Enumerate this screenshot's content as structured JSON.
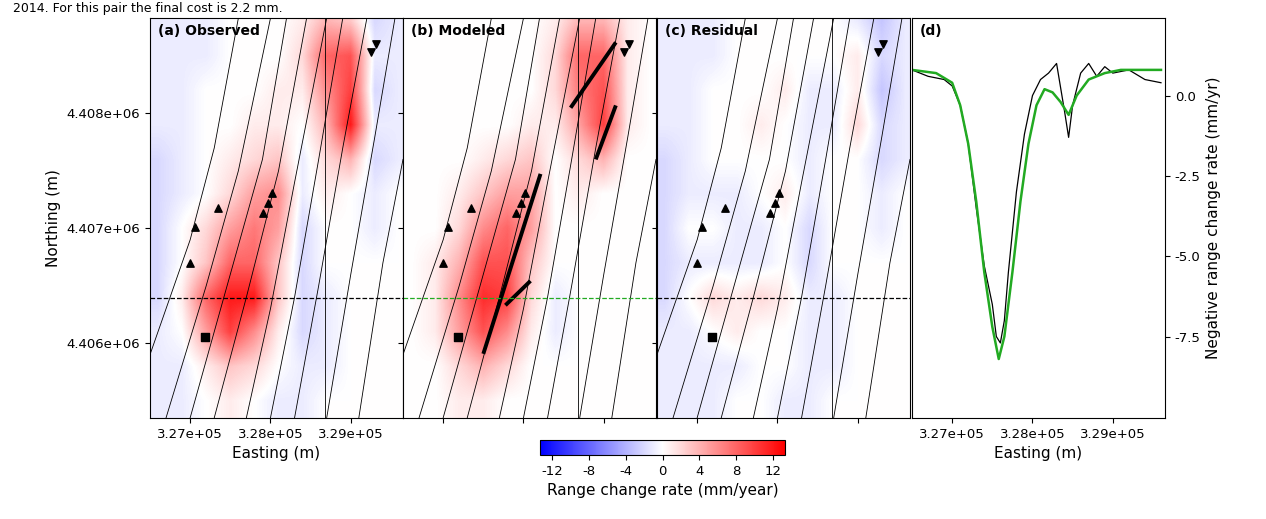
{
  "header_text": "2014. For this pair the final cost is 2.2 mm.",
  "colorbar": {
    "label": "Range change rate (mm/year)",
    "range": [
      -13.3,
      13.3
    ],
    "ticks": [
      -12,
      -8,
      -4,
      0,
      4,
      8,
      12
    ]
  },
  "faults": [
    [
      [
        326500,
        4405900
      ],
      [
        327000,
        4406900
      ],
      [
        327300,
        4407700
      ],
      [
        327600,
        4408830
      ]
    ],
    [
      [
        326700,
        4405350
      ],
      [
        327200,
        4406500
      ],
      [
        327600,
        4407500
      ],
      [
        328000,
        4408830
      ]
    ],
    [
      [
        327000,
        4405350
      ],
      [
        327500,
        4406600
      ],
      [
        327900,
        4407600
      ],
      [
        328200,
        4408830
      ]
    ],
    [
      [
        327300,
        4405350
      ],
      [
        327700,
        4406400
      ],
      [
        328100,
        4407500
      ],
      [
        328450,
        4408830
      ]
    ],
    [
      [
        327700,
        4405350
      ],
      [
        328000,
        4406300
      ],
      [
        328300,
        4407400
      ],
      [
        328700,
        4408830
      ]
    ],
    [
      [
        328000,
        4405350
      ],
      [
        328300,
        4406400
      ],
      [
        328600,
        4407600
      ],
      [
        328900,
        4408830
      ]
    ],
    [
      [
        328300,
        4405350
      ],
      [
        328600,
        4406500
      ],
      [
        328900,
        4407700
      ],
      [
        329200,
        4408830
      ]
    ],
    [
      [
        328700,
        4405350
      ],
      [
        329000,
        4406600
      ],
      [
        329300,
        4407800
      ],
      [
        329550,
        4408830
      ]
    ],
    [
      [
        329100,
        4405350
      ],
      [
        329400,
        4406700
      ],
      [
        329650,
        4407600
      ]
    ],
    [
      [
        328680,
        4405350
      ],
      [
        328680,
        4408830
      ]
    ]
  ],
  "markers": [
    {
      "marker": "triangle_up",
      "points": [
        [
          327062,
          4407008
        ],
        [
          327000,
          4406695
        ],
        [
          327350,
          4407178
        ],
        [
          328025,
          4407305
        ],
        [
          327975,
          4407220
        ],
        [
          327912,
          4407136
        ]
      ]
    },
    {
      "marker": "square",
      "points": [
        [
          327187,
          4406051
        ]
      ]
    },
    {
      "marker": "triangle_down",
      "points": [
        [
          329312,
          4408602
        ],
        [
          329250,
          4408534
        ]
      ]
    }
  ],
  "chart_data": [
    {
      "type": "heatmap",
      "title": "(a) Observed",
      "xlabel": "Easting (m)",
      "ylabel": "Northing (m)",
      "xlim": [
        326500,
        329650
      ],
      "ylim": [
        4405350,
        4408830
      ],
      "xticks": [
        {
          "value": 327000,
          "label": "3.27e+05"
        },
        {
          "value": 328000,
          "label": "3.28e+05"
        },
        {
          "value": 329000,
          "label": "3.29e+05"
        }
      ],
      "yticks": [
        {
          "value": 4406000,
          "label": "4.406e+06"
        },
        {
          "value": 4407000,
          "label": "4.407e+06"
        },
        {
          "value": 4408000,
          "label": "4.408e+06"
        }
      ],
      "profile": {
        "northing": 4406390,
        "color": "#000000",
        "line_style": "dashed"
      },
      "x_centers": [
        326600,
        326900,
        327200,
        327500,
        327800,
        328100,
        328400,
        328700,
        329000,
        329300,
        329600
      ],
      "y_centers": [
        4408800,
        4408500,
        4408200,
        4407900,
        4407600,
        4407300,
        4407000,
        4406700,
        4406400,
        4406100,
        4405800,
        4405500
      ],
      "cells": [
        [
          -1,
          -1,
          -1,
          0,
          0,
          0,
          1,
          4,
          3,
          -2,
          -1
        ],
        [
          -1,
          -1,
          -1,
          0,
          0,
          0,
          2,
          8,
          9,
          -1,
          -1
        ],
        [
          -1,
          -1,
          0,
          0,
          0,
          1,
          1,
          6,
          10,
          -2,
          -1
        ],
        [
          -1,
          -1,
          0,
          0,
          1,
          1,
          0,
          4,
          12,
          -1,
          -1
        ],
        [
          -2,
          -1,
          0,
          1,
          2,
          3,
          -1,
          2,
          4,
          -2,
          -1
        ],
        [
          -2,
          -1,
          0,
          2,
          5,
          6,
          -1,
          1,
          0,
          -1,
          0
        ],
        [
          -2,
          0,
          2,
          5,
          7,
          5,
          -2,
          0,
          0,
          -1,
          0
        ],
        [
          -2,
          0,
          3,
          8,
          8,
          3,
          -2,
          0,
          0,
          0,
          0
        ],
        [
          -2,
          1,
          8,
          12,
          12,
          3,
          -2,
          -1,
          0,
          0,
          0
        ],
        [
          -1,
          0,
          5,
          10,
          6,
          1,
          -2,
          -1,
          0,
          0,
          0
        ],
        [
          -1,
          -1,
          1,
          3,
          2,
          0,
          -1,
          -1,
          0,
          0,
          0
        ],
        [
          -1,
          -1,
          0,
          1,
          0,
          -1,
          -1,
          0,
          0,
          0,
          0
        ]
      ]
    },
    {
      "type": "heatmap",
      "title": "(b) Modeled",
      "tick_labels": false,
      "xlim": [
        326500,
        329650
      ],
      "ylim": [
        4405350,
        4408830
      ],
      "xticks": [
        327000,
        328000,
        329000
      ],
      "yticks": [
        4406000,
        4407000,
        4408000
      ],
      "profile": {
        "northing": 4406390,
        "color": "#22aa22",
        "line_style": "dashed"
      },
      "fault_model": [
        [
          [
            327500,
            4405907
          ],
          [
            328212,
            4407474
          ]
        ],
        [
          [
            327775,
            4406330
          ],
          [
            328087,
            4406542
          ]
        ],
        [
          [
            328587,
            4408050
          ],
          [
            329150,
            4408619
          ]
        ],
        [
          [
            328900,
            4407600
          ],
          [
            329150,
            4408070
          ]
        ]
      ],
      "x_centers": [
        326600,
        326900,
        327200,
        327500,
        327800,
        328100,
        328400,
        328700,
        329000,
        329300,
        329600
      ],
      "y_centers": [
        4408800,
        4408500,
        4408200,
        4407900,
        4407600,
        4407300,
        4407000,
        4406700,
        4406400,
        4406100,
        4405800,
        4405500
      ],
      "cells": [
        [
          0,
          0,
          0,
          0,
          0,
          0,
          1,
          4,
          4,
          1,
          0
        ],
        [
          0,
          0,
          0,
          0,
          0,
          0,
          2,
          8,
          8,
          1,
          0
        ],
        [
          0,
          0,
          0,
          0,
          0,
          0,
          2,
          7,
          9,
          1,
          0
        ],
        [
          0,
          0,
          0,
          0,
          0,
          1,
          1,
          5,
          10,
          1,
          0
        ],
        [
          0,
          0,
          0,
          1,
          2,
          3,
          0,
          2,
          4,
          0,
          0
        ],
        [
          0,
          0,
          1,
          3,
          5,
          5,
          0,
          1,
          0,
          0,
          0
        ],
        [
          0,
          0,
          2,
          6,
          8,
          5,
          0,
          0,
          0,
          0,
          0
        ],
        [
          0,
          1,
          4,
          9,
          9,
          3,
          0,
          0,
          0,
          0,
          0
        ],
        [
          0,
          1,
          6,
          11,
          10,
          2,
          -1,
          0,
          0,
          0,
          0
        ],
        [
          0,
          1,
          5,
          9,
          6,
          1,
          -1,
          0,
          0,
          0,
          0
        ],
        [
          0,
          0,
          2,
          4,
          2,
          0,
          0,
          0,
          0,
          0,
          0
        ],
        [
          0,
          0,
          1,
          1,
          0,
          0,
          0,
          0,
          0,
          0,
          0
        ]
      ]
    },
    {
      "type": "heatmap",
      "title": "(c) Residual",
      "tick_labels": false,
      "xlim": [
        326500,
        329650
      ],
      "ylim": [
        4405350,
        4408830
      ],
      "xticks": [
        327000,
        328000,
        329000
      ],
      "yticks": [
        4406000,
        4407000,
        4408000
      ],
      "profile": {
        "northing": 4406390,
        "color": "#000000",
        "line_style": "dashed"
      },
      "x_centers": [
        326600,
        326900,
        327200,
        327500,
        327800,
        328100,
        328400,
        328700,
        329000,
        329300,
        329600
      ],
      "y_centers": [
        4408800,
        4408500,
        4408200,
        4407900,
        4407600,
        4407300,
        4407000,
        4406700,
        4406400,
        4406100,
        4405800,
        4405500
      ],
      "cells": [
        [
          -1,
          -1,
          -1,
          0,
          0,
          0,
          0,
          0,
          -1,
          -3,
          -1
        ],
        [
          -1,
          -1,
          -1,
          0,
          0,
          0,
          0,
          0,
          1,
          -2,
          -1
        ],
        [
          -1,
          -1,
          0,
          0,
          0,
          1,
          -1,
          -1,
          1,
          -3,
          -1
        ],
        [
          -1,
          -1,
          0,
          0,
          1,
          0,
          -1,
          -1,
          2,
          -2,
          -1
        ],
        [
          -2,
          -1,
          0,
          0,
          0,
          0,
          -1,
          0,
          0,
          -2,
          -1
        ],
        [
          -2,
          -1,
          -1,
          -1,
          0,
          1,
          -1,
          0,
          0,
          -1,
          0
        ],
        [
          -2,
          0,
          0,
          -1,
          -1,
          0,
          -2,
          0,
          0,
          -1,
          0
        ],
        [
          -2,
          -1,
          -1,
          -1,
          -1,
          0,
          -2,
          0,
          0,
          0,
          0
        ],
        [
          -2,
          0,
          2,
          1,
          2,
          1,
          -1,
          -1,
          0,
          0,
          0
        ],
        [
          -1,
          -1,
          0,
          1,
          0,
          0,
          -1,
          -1,
          0,
          0,
          0
        ],
        [
          -1,
          -1,
          -1,
          -1,
          0,
          0,
          -1,
          -1,
          0,
          0,
          0
        ],
        [
          -1,
          -1,
          -1,
          0,
          0,
          -1,
          -1,
          0,
          0,
          0,
          0
        ]
      ]
    },
    {
      "type": "line",
      "title": "(d)",
      "xlabel": "Easting (m)",
      "ylabel": "Negative range change rate (mm/yr)",
      "xlim": [
        326500,
        329650
      ],
      "ylim": [
        -10.03,
        2.41
      ],
      "xticks": [
        {
          "value": 327000,
          "label": "3.27e+05"
        },
        {
          "value": 328000,
          "label": "3.28e+05"
        },
        {
          "value": 329000,
          "label": "3.29e+05"
        }
      ],
      "yticks": [
        {
          "value": 0,
          "label": "0.0"
        },
        -2.5,
        {
          "value": -5,
          "label": "-5.0"
        },
        -7.5
      ],
      "series": [
        {
          "color": "#000000",
          "x": [
            326500,
            326700,
            326900,
            327000,
            327100,
            327200,
            327300,
            327400,
            327500,
            327550,
            327600,
            327650,
            327700,
            327800,
            327900,
            328000,
            328100,
            328200,
            328300,
            328400,
            328450,
            328500,
            328600,
            328700,
            328800,
            328900,
            329000,
            329200,
            329400,
            329600
          ],
          "values": [
            0.8,
            0.6,
            0.5,
            0.3,
            -0.3,
            -1.5,
            -3.5,
            -5.3,
            -6.5,
            -7.5,
            -7.7,
            -7.0,
            -5.5,
            -3.0,
            -1.2,
            0.0,
            0.5,
            0.7,
            1.0,
            -0.5,
            -1.3,
            -0.3,
            0.7,
            1.0,
            0.6,
            0.9,
            0.7,
            0.8,
            0.5,
            0.4
          ]
        },
        {
          "color": "#22aa22",
          "x": [
            326500,
            326800,
            327000,
            327100,
            327200,
            327300,
            327400,
            327500,
            327580,
            327650,
            327750,
            327850,
            327950,
            328050,
            328150,
            328250,
            328350,
            328450,
            328550,
            328700,
            328900,
            329100,
            329400,
            329600
          ],
          "values": [
            0.8,
            0.7,
            0.4,
            -0.3,
            -1.5,
            -3.3,
            -5.5,
            -7.2,
            -8.2,
            -7.5,
            -5.5,
            -3.3,
            -1.5,
            -0.3,
            0.2,
            0.1,
            -0.2,
            -0.6,
            0.0,
            0.5,
            0.7,
            0.8,
            0.8,
            0.8
          ]
        }
      ]
    }
  ]
}
